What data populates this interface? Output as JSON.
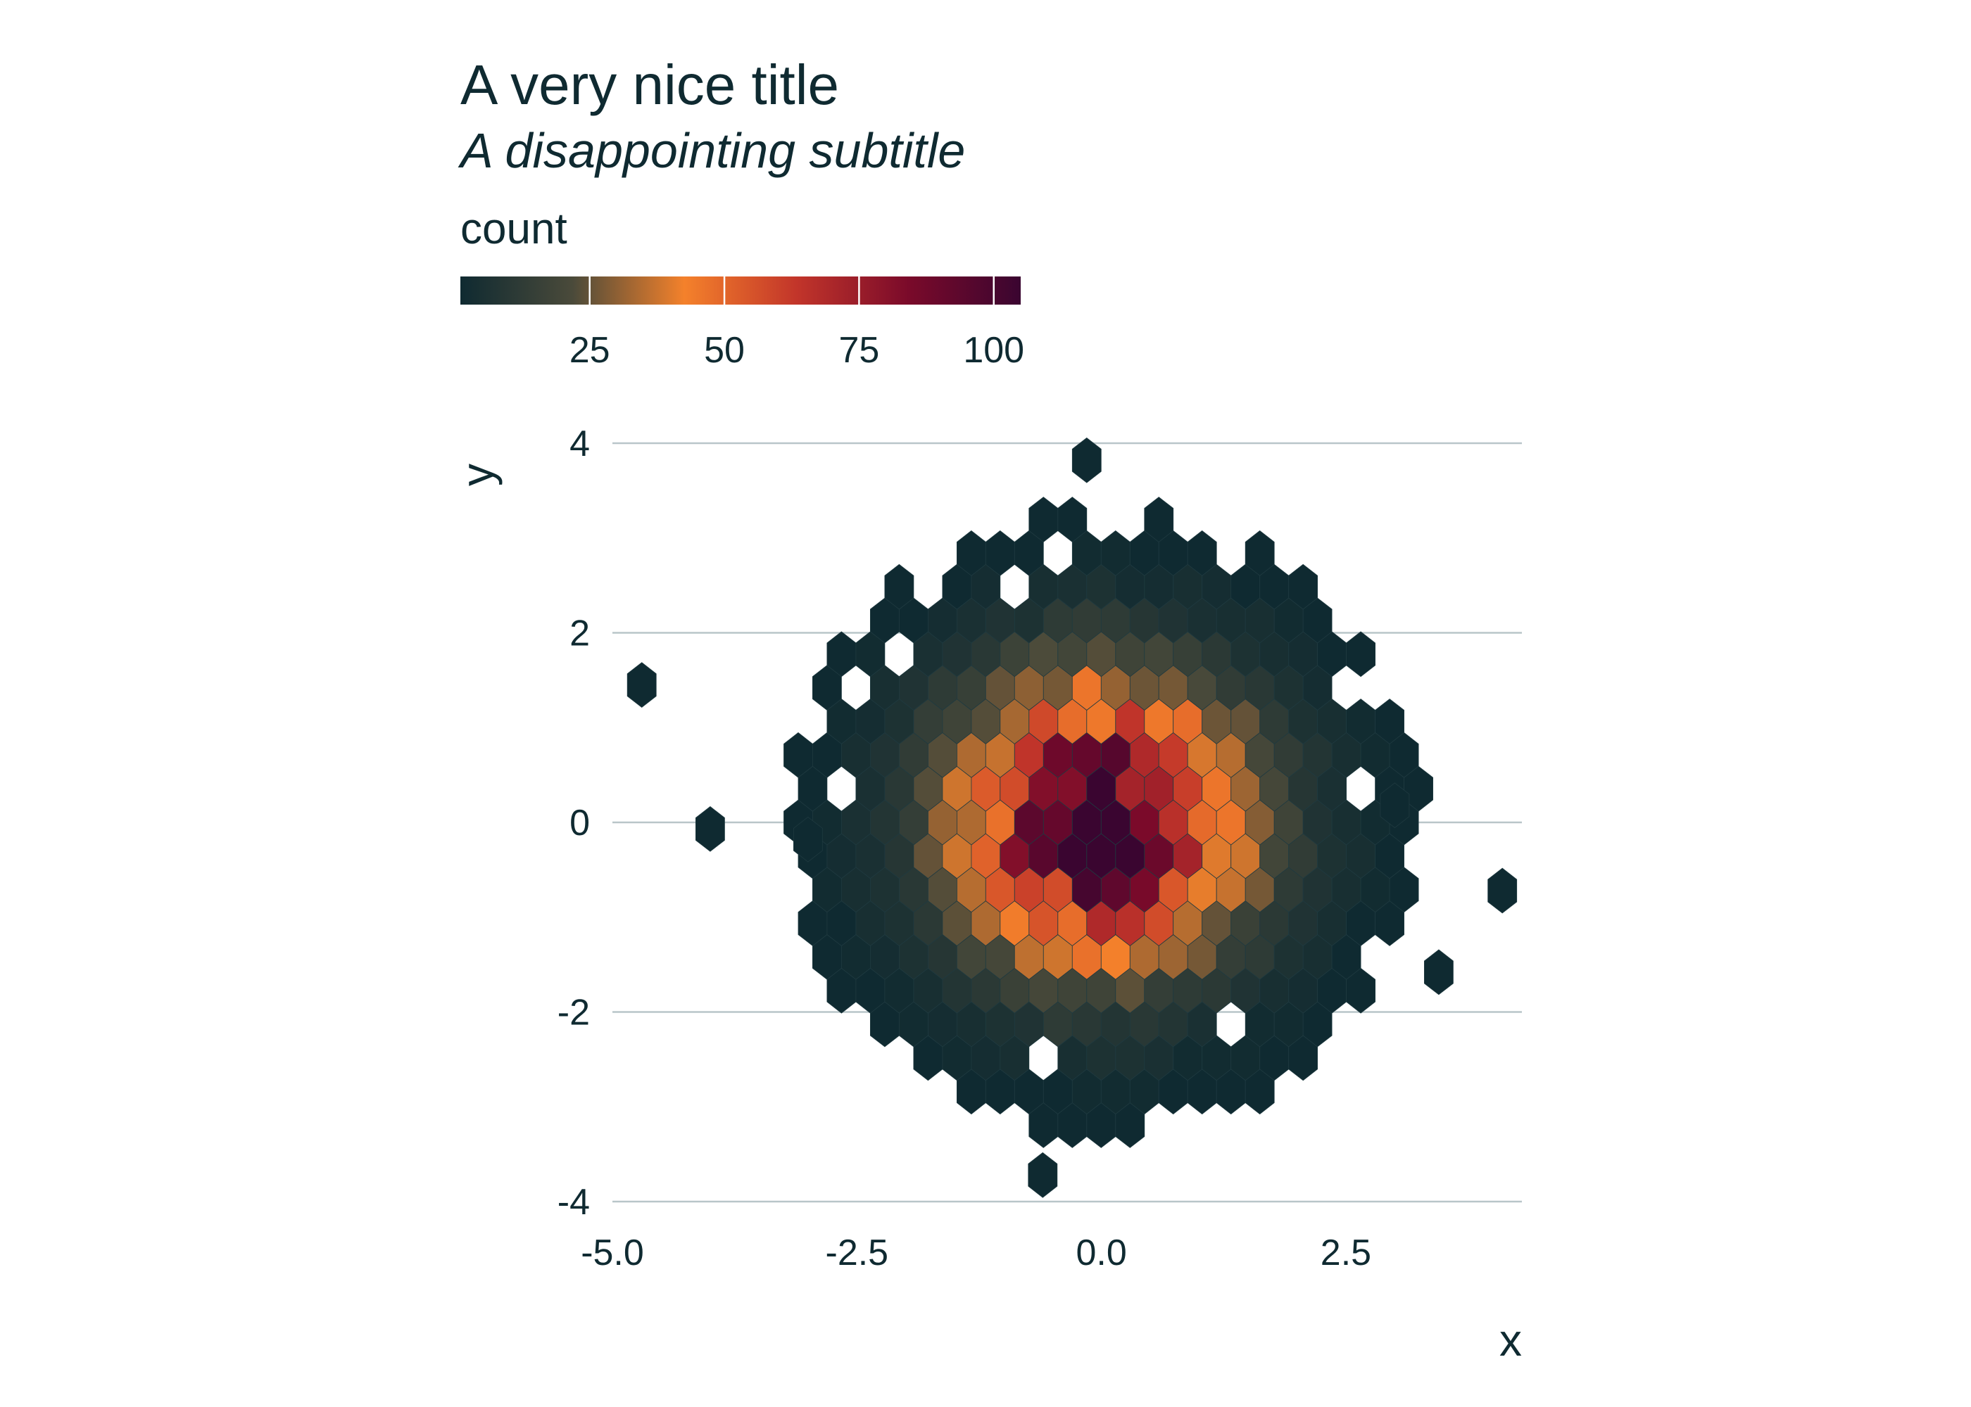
{
  "chart_data": {
    "type": "heatmap",
    "geometry": "hexbin",
    "title": "A very nice title",
    "subtitle": "A disappointing subtitle",
    "xlabel": "x",
    "ylabel": "y",
    "xlim": [
      -5.0,
      4.3
    ],
    "ylim": [
      -4.0,
      4.0
    ],
    "x_ticks": [
      -5.0,
      -2.5,
      0.0,
      2.5
    ],
    "x_tick_labels": [
      "-5.0",
      "-2.5",
      "0.0",
      "2.5"
    ],
    "y_ticks": [
      -4,
      -2,
      0,
      2,
      4
    ],
    "y_tick_labels": [
      "-4",
      "-2",
      "0",
      "2",
      "4"
    ],
    "grid": "horizontal major only",
    "legend": {
      "title": "count",
      "placement": "top",
      "range": [
        1,
        105
      ],
      "breaks": [
        25,
        50,
        75,
        100
      ],
      "break_labels": [
        "25",
        "50",
        "75",
        "100"
      ],
      "palette": [
        "#0f2a31",
        "#4a4a3a",
        "#f4812b",
        "#c2352a",
        "#7a0a2a",
        "#3a0530"
      ]
    },
    "distribution": "approximately bivariate standard normal centred at (0, 0); peak bin count about 105",
    "bin_width": {
      "x": 0.295,
      "y": 0.355
    },
    "hex_bins": [
      {
        "x": -0.15,
        "y": -0.18,
        "count": 105
      },
      {
        "x": 0.15,
        "y": -0.18,
        "count": 100
      },
      {
        "x": -0.3,
        "y": 0.18,
        "count": 98
      },
      {
        "x": 0.0,
        "y": 0.18,
        "count": 102
      },
      {
        "x": 0.3,
        "y": 0.18,
        "count": 92
      },
      {
        "x": -0.15,
        "y": 0.53,
        "count": 90
      },
      {
        "x": 0.15,
        "y": 0.53,
        "count": 85
      },
      {
        "x": 0.45,
        "y": 0.53,
        "count": 80
      },
      {
        "x": -0.45,
        "y": 0.18,
        "count": 80
      },
      {
        "x": -0.45,
        "y": -0.18,
        "count": 88
      },
      {
        "x": 0.45,
        "y": -0.18,
        "count": 78
      },
      {
        "x": 0.0,
        "y": -0.53,
        "count": 90
      },
      {
        "x": -0.3,
        "y": -0.53,
        "count": 78
      },
      {
        "x": 0.3,
        "y": -0.53,
        "count": 72
      },
      {
        "x": 0.6,
        "y": 0.18,
        "count": 70
      },
      {
        "x": -0.75,
        "y": 0.18,
        "count": 68
      },
      {
        "x": 0.75,
        "y": -0.18,
        "count": 62
      },
      {
        "x": -0.75,
        "y": -0.18,
        "count": 66
      },
      {
        "x": 0.0,
        "y": 0.89,
        "count": 72
      },
      {
        "x": 0.3,
        "y": 0.89,
        "count": 66
      },
      {
        "x": -0.3,
        "y": 0.89,
        "count": 64
      },
      {
        "x": -0.15,
        "y": -0.89,
        "count": 62
      },
      {
        "x": 0.15,
        "y": -0.89,
        "count": 60
      },
      {
        "x": 0.6,
        "y": 0.89,
        "count": 56
      },
      {
        "x": -0.6,
        "y": -0.89,
        "count": 55
      },
      {
        "x": 0.6,
        "y": -0.53,
        "count": 55
      },
      {
        "x": -0.6,
        "y": 0.53,
        "count": 58
      },
      {
        "x": 0.9,
        "y": 0.53,
        "count": 52
      },
      {
        "x": -0.9,
        "y": 0.53,
        "count": 50
      },
      {
        "x": 1.05,
        "y": 0.18,
        "count": 46
      },
      {
        "x": -1.05,
        "y": -0.18,
        "count": 48
      },
      {
        "x": 0.9,
        "y": -0.53,
        "count": 45
      },
      {
        "x": -0.9,
        "y": -0.53,
        "count": 46
      },
      {
        "x": -0.45,
        "y": 1.24,
        "count": 40
      },
      {
        "x": 0.15,
        "y": 1.24,
        "count": 44
      },
      {
        "x": -0.15,
        "y": 1.24,
        "count": 42
      },
      {
        "x": 0.45,
        "y": 1.24,
        "count": 38
      },
      {
        "x": 0.0,
        "y": -1.24,
        "count": 42
      },
      {
        "x": -0.3,
        "y": -1.24,
        "count": 38
      },
      {
        "x": 0.3,
        "y": -1.24,
        "count": 36
      },
      {
        "x": 1.2,
        "y": -0.53,
        "count": 32
      },
      {
        "x": -1.2,
        "y": 0.53,
        "count": 34
      },
      {
        "x": 1.35,
        "y": 0.18,
        "count": 30
      },
      {
        "x": -1.35,
        "y": -0.18,
        "count": 30
      },
      {
        "x": 0.9,
        "y": 1.24,
        "count": 28
      },
      {
        "x": -0.9,
        "y": -1.24,
        "count": 26
      },
      {
        "x": -1.5,
        "y": 0.53,
        "count": 20
      },
      {
        "x": 1.5,
        "y": -0.53,
        "count": 18
      },
      {
        "x": 0.3,
        "y": 1.6,
        "count": 20
      },
      {
        "x": -0.3,
        "y": -1.6,
        "count": 18
      },
      {
        "x": 1.65,
        "y": 0.18,
        "count": 16
      },
      {
        "x": -1.65,
        "y": -0.18,
        "count": 16
      },
      {
        "x": 0.6,
        "y": -1.6,
        "count": 14
      },
      {
        "x": -0.6,
        "y": 1.6,
        "count": 14
      },
      {
        "x": 0.0,
        "y": 1.95,
        "count": 10
      },
      {
        "x": 0.0,
        "y": -1.95,
        "count": 10
      },
      {
        "x": 2.0,
        "y": 0.18,
        "count": 8
      },
      {
        "x": -2.0,
        "y": -0.18,
        "count": 8
      },
      {
        "x": 1.2,
        "y": 1.6,
        "count": 7
      },
      {
        "x": -1.2,
        "y": -1.6,
        "count": 7
      },
      {
        "x": 2.4,
        "y": -0.53,
        "count": 4
      },
      {
        "x": -2.4,
        "y": 0.53,
        "count": 4
      },
      {
        "x": 0.6,
        "y": 2.6,
        "count": 2
      },
      {
        "x": -0.6,
        "y": -2.6,
        "count": 2
      },
      {
        "x": 3.0,
        "y": 0.18,
        "count": 1
      },
      {
        "x": -3.0,
        "y": -0.18,
        "count": 1
      },
      {
        "x": -4.7,
        "y": 1.45,
        "count": 1
      },
      {
        "x": -4.0,
        "y": -0.07,
        "count": 1
      },
      {
        "x": 4.1,
        "y": -0.72,
        "count": 1
      },
      {
        "x": 3.45,
        "y": -1.58,
        "count": 1
      },
      {
        "x": -0.15,
        "y": 3.82,
        "count": 1
      },
      {
        "x": -0.6,
        "y": -3.72,
        "count": 1
      }
    ]
  }
}
